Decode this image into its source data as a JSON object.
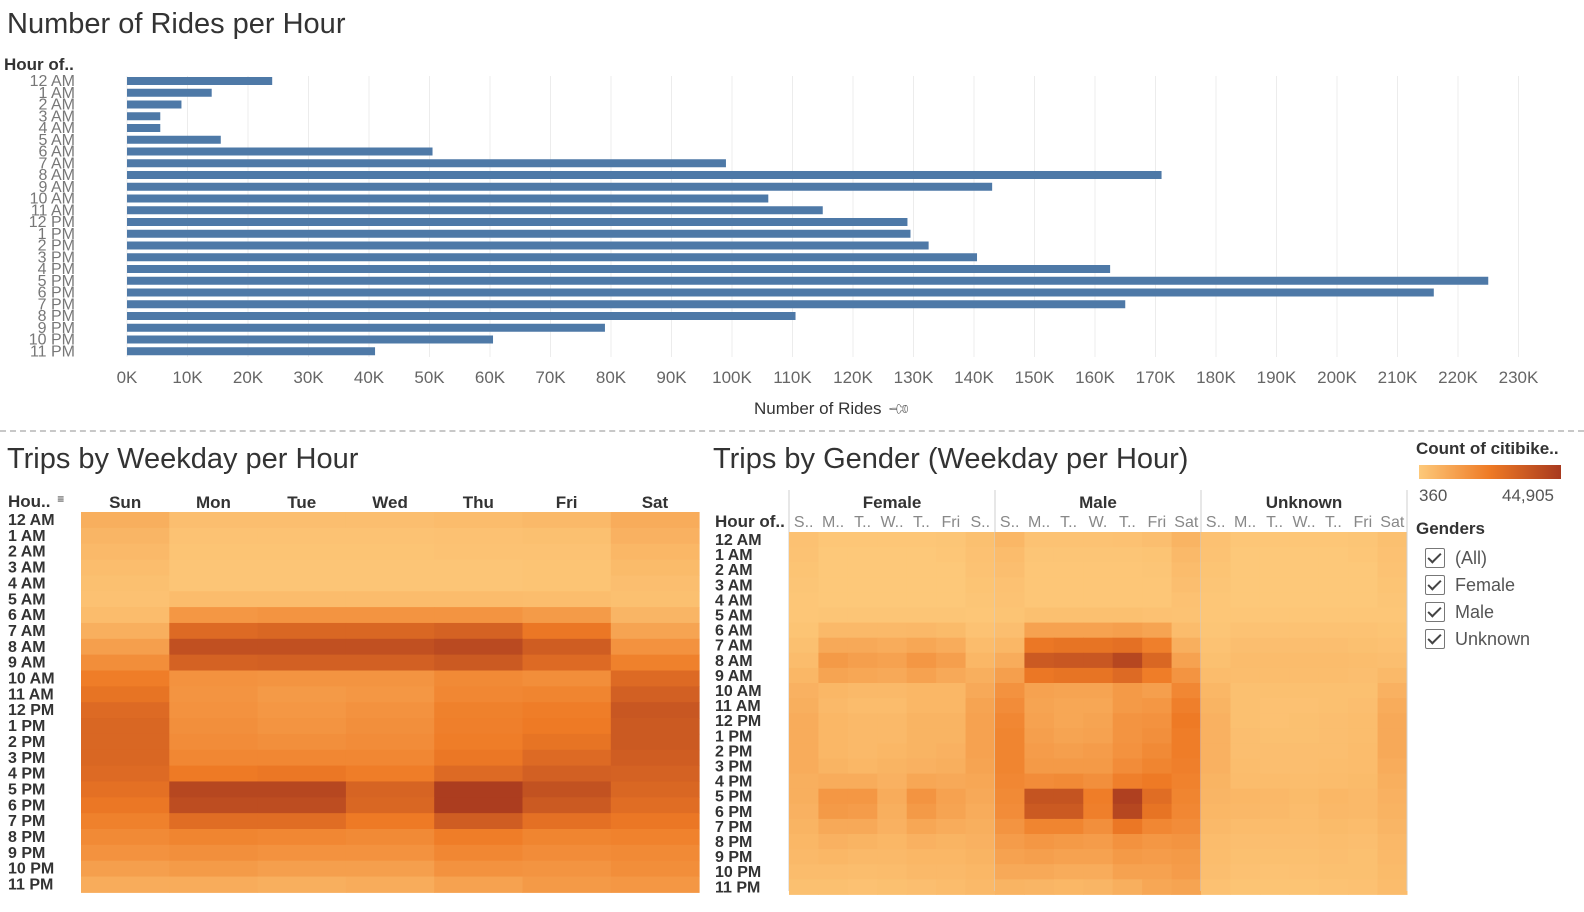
{
  "colors": {
    "bar": "#4e79a7",
    "heat_low": "#fdc97a",
    "heat_mid": "#ee7a25",
    "heat_high": "#a83a1f",
    "gridline": "#ececec"
  },
  "bar_section": {
    "title": "Number of Rides per Hour",
    "row_header": "Hour of..",
    "x_axis_title": "Number of Rides",
    "pin_icon": "pin-icon"
  },
  "weekday_section": {
    "title": "Trips by Weekday per Hour",
    "row_header": "Hou..",
    "sort_icon": "sort-icon"
  },
  "gender_section": {
    "title": "Trips by Gender (Weekday per Hour)",
    "row_header": "Hour of.."
  },
  "legend": {
    "color_title": "Count of citibike..",
    "min_label": "360",
    "max_label": "44,905",
    "filter_title": "Genders",
    "options": [
      "(All)",
      "Female",
      "Male",
      "Unknown"
    ],
    "checked": [
      true,
      true,
      true,
      true
    ]
  },
  "chart_data": [
    {
      "type": "bar",
      "title": "Number of Rides per Hour",
      "ylabel": "Hour of..",
      "xlabel": "Number of Rides",
      "categories": [
        "12 AM",
        "1 AM",
        "2 AM",
        "3 AM",
        "4 AM",
        "5 AM",
        "6 AM",
        "7 AM",
        "8 AM",
        "9 AM",
        "10 AM",
        "11 AM",
        "12 PM",
        "1 PM",
        "2 PM",
        "3 PM",
        "4 PM",
        "5 PM",
        "6 PM",
        "7 PM",
        "8 PM",
        "9 PM",
        "10 PM",
        "11 PM"
      ],
      "values": [
        24000,
        14000,
        9000,
        5500,
        5500,
        15500,
        50500,
        99000,
        171000,
        143000,
        106000,
        115000,
        129000,
        129500,
        132500,
        140500,
        162500,
        225000,
        216000,
        165000,
        110500,
        79000,
        60500,
        41000
      ],
      "x_ticks": [
        "0K",
        "10K",
        "20K",
        "30K",
        "40K",
        "50K",
        "60K",
        "70K",
        "80K",
        "90K",
        "100K",
        "110K",
        "120K",
        "130K",
        "140K",
        "150K",
        "160K",
        "170K",
        "180K",
        "190K",
        "200K",
        "210K",
        "220K",
        "230K"
      ],
      "xlim": [
        0,
        230000
      ],
      "grid": true
    },
    {
      "type": "heatmap",
      "title": "Trips by Weekday per Hour",
      "columns": [
        "Sun",
        "Mon",
        "Tue",
        "Wed",
        "Thu",
        "Fri",
        "Sat"
      ],
      "rows": [
        "12 AM",
        "1 AM",
        "2 AM",
        "3 AM",
        "4 AM",
        "5 AM",
        "6 AM",
        "7 AM",
        "8 AM",
        "9 AM",
        "10 AM",
        "11 AM",
        "12 PM",
        "1 PM",
        "2 PM",
        "3 PM",
        "4 PM",
        "5 PM",
        "6 PM",
        "7 PM",
        "8 PM",
        "9 PM",
        "10 PM",
        "11 PM"
      ],
      "scale": [
        0,
        1
      ],
      "values": [
        [
          0.2,
          0.08,
          0.08,
          0.08,
          0.1,
          0.12,
          0.22
        ],
        [
          0.15,
          0.05,
          0.05,
          0.05,
          0.06,
          0.07,
          0.18
        ],
        [
          0.12,
          0.04,
          0.04,
          0.04,
          0.05,
          0.05,
          0.14
        ],
        [
          0.09,
          0.03,
          0.03,
          0.03,
          0.03,
          0.04,
          0.11
        ],
        [
          0.07,
          0.03,
          0.03,
          0.03,
          0.03,
          0.04,
          0.08
        ],
        [
          0.06,
          0.1,
          0.1,
          0.1,
          0.1,
          0.09,
          0.07
        ],
        [
          0.1,
          0.38,
          0.4,
          0.4,
          0.4,
          0.35,
          0.15
        ],
        [
          0.2,
          0.7,
          0.72,
          0.72,
          0.75,
          0.62,
          0.28
        ],
        [
          0.32,
          0.86,
          0.86,
          0.86,
          0.9,
          0.78,
          0.42
        ],
        [
          0.45,
          0.75,
          0.76,
          0.76,
          0.8,
          0.7,
          0.55
        ],
        [
          0.58,
          0.42,
          0.4,
          0.4,
          0.48,
          0.45,
          0.7
        ],
        [
          0.64,
          0.4,
          0.36,
          0.38,
          0.5,
          0.52,
          0.76
        ],
        [
          0.7,
          0.42,
          0.38,
          0.42,
          0.55,
          0.58,
          0.82
        ],
        [
          0.72,
          0.44,
          0.4,
          0.44,
          0.56,
          0.6,
          0.8
        ],
        [
          0.72,
          0.46,
          0.44,
          0.46,
          0.58,
          0.64,
          0.8
        ],
        [
          0.72,
          0.5,
          0.5,
          0.5,
          0.62,
          0.7,
          0.78
        ],
        [
          0.7,
          0.6,
          0.62,
          0.58,
          0.7,
          0.76,
          0.75
        ],
        [
          0.66,
          0.92,
          0.92,
          0.74,
          0.98,
          0.85,
          0.72
        ],
        [
          0.62,
          0.88,
          0.88,
          0.72,
          0.98,
          0.8,
          0.68
        ],
        [
          0.55,
          0.68,
          0.68,
          0.6,
          0.78,
          0.66,
          0.62
        ],
        [
          0.48,
          0.52,
          0.5,
          0.48,
          0.58,
          0.52,
          0.54
        ],
        [
          0.42,
          0.44,
          0.42,
          0.42,
          0.5,
          0.46,
          0.48
        ],
        [
          0.32,
          0.35,
          0.32,
          0.32,
          0.42,
          0.4,
          0.45
        ],
        [
          0.22,
          0.22,
          0.2,
          0.22,
          0.3,
          0.36,
          0.38
        ]
      ]
    },
    {
      "type": "heatmap",
      "title": "Trips by Gender (Weekday per Hour)",
      "groups": [
        "Female",
        "Male",
        "Unknown"
      ],
      "day_labels": [
        "S..",
        "M..",
        "T..",
        "W..",
        "T..",
        "Fri",
        "S.."
      ],
      "day_labels_male": [
        "S..",
        "M..",
        "T..",
        "W.",
        "T..",
        "Fri",
        "Sat"
      ],
      "day_labels_unknown": [
        "S..",
        "M..",
        "T..",
        "W..",
        "T..",
        "Fri",
        "Sat"
      ],
      "rows": [
        "12 AM",
        "1 AM",
        "2 AM",
        "3 AM",
        "4 AM",
        "5 AM",
        "6 AM",
        "7 AM",
        "8 AM",
        "9 AM",
        "10 AM",
        "11 AM",
        "12 PM",
        "1 PM",
        "2 PM",
        "3 PM",
        "4 PM",
        "5 PM",
        "6 PM",
        "7 PM",
        "8 PM",
        "9 PM",
        "10 PM",
        "11 PM"
      ],
      "scale": [
        0,
        1
      ],
      "values": {
        "Female": [
          [
            0.06,
            0.02,
            0.02,
            0.02,
            0.02,
            0.03,
            0.07
          ],
          [
            0.05,
            0.01,
            0.01,
            0.01,
            0.01,
            0.02,
            0.06
          ],
          [
            0.04,
            0.01,
            0.01,
            0.01,
            0.01,
            0.01,
            0.05
          ],
          [
            0.03,
            0.01,
            0.01,
            0.01,
            0.01,
            0.01,
            0.04
          ],
          [
            0.02,
            0.01,
            0.01,
            0.01,
            0.01,
            0.01,
            0.03
          ],
          [
            0.02,
            0.03,
            0.03,
            0.03,
            0.03,
            0.03,
            0.02
          ],
          [
            0.04,
            0.12,
            0.12,
            0.12,
            0.13,
            0.11,
            0.05
          ],
          [
            0.07,
            0.24,
            0.24,
            0.22,
            0.26,
            0.22,
            0.1
          ],
          [
            0.1,
            0.36,
            0.32,
            0.3,
            0.38,
            0.32,
            0.14
          ],
          [
            0.14,
            0.28,
            0.26,
            0.24,
            0.3,
            0.24,
            0.2
          ],
          [
            0.18,
            0.14,
            0.12,
            0.12,
            0.14,
            0.14,
            0.24
          ],
          [
            0.2,
            0.12,
            0.1,
            0.1,
            0.14,
            0.14,
            0.28
          ],
          [
            0.22,
            0.14,
            0.12,
            0.12,
            0.16,
            0.16,
            0.3
          ],
          [
            0.22,
            0.14,
            0.12,
            0.12,
            0.16,
            0.16,
            0.3
          ],
          [
            0.22,
            0.14,
            0.12,
            0.14,
            0.16,
            0.18,
            0.3
          ],
          [
            0.22,
            0.16,
            0.14,
            0.16,
            0.18,
            0.2,
            0.28
          ],
          [
            0.2,
            0.22,
            0.22,
            0.18,
            0.26,
            0.24,
            0.26
          ],
          [
            0.2,
            0.38,
            0.38,
            0.22,
            0.4,
            0.3,
            0.24
          ],
          [
            0.18,
            0.36,
            0.34,
            0.2,
            0.36,
            0.28,
            0.22
          ],
          [
            0.16,
            0.24,
            0.24,
            0.18,
            0.26,
            0.22,
            0.2
          ],
          [
            0.14,
            0.18,
            0.16,
            0.14,
            0.18,
            0.16,
            0.18
          ],
          [
            0.12,
            0.14,
            0.12,
            0.12,
            0.14,
            0.14,
            0.16
          ],
          [
            0.1,
            0.1,
            0.09,
            0.1,
            0.12,
            0.12,
            0.14
          ],
          [
            0.07,
            0.07,
            0.06,
            0.07,
            0.08,
            0.1,
            0.12
          ]
        ],
        "Male": [
          [
            0.14,
            0.05,
            0.05,
            0.05,
            0.06,
            0.08,
            0.16
          ],
          [
            0.1,
            0.03,
            0.03,
            0.03,
            0.03,
            0.04,
            0.12
          ],
          [
            0.08,
            0.02,
            0.02,
            0.02,
            0.02,
            0.03,
            0.1
          ],
          [
            0.06,
            0.02,
            0.02,
            0.02,
            0.02,
            0.02,
            0.08
          ],
          [
            0.05,
            0.02,
            0.02,
            0.02,
            0.02,
            0.02,
            0.06
          ],
          [
            0.04,
            0.07,
            0.07,
            0.07,
            0.07,
            0.06,
            0.05
          ],
          [
            0.08,
            0.3,
            0.3,
            0.3,
            0.32,
            0.28,
            0.1
          ],
          [
            0.14,
            0.62,
            0.64,
            0.64,
            0.66,
            0.56,
            0.2
          ],
          [
            0.22,
            0.8,
            0.82,
            0.82,
            0.92,
            0.72,
            0.3
          ],
          [
            0.32,
            0.62,
            0.64,
            0.64,
            0.7,
            0.58,
            0.4
          ],
          [
            0.42,
            0.3,
            0.28,
            0.28,
            0.36,
            0.32,
            0.5
          ],
          [
            0.46,
            0.28,
            0.26,
            0.26,
            0.36,
            0.38,
            0.56
          ],
          [
            0.5,
            0.3,
            0.26,
            0.28,
            0.4,
            0.42,
            0.6
          ],
          [
            0.52,
            0.32,
            0.28,
            0.3,
            0.4,
            0.44,
            0.58
          ],
          [
            0.52,
            0.34,
            0.32,
            0.34,
            0.42,
            0.48,
            0.58
          ],
          [
            0.52,
            0.36,
            0.36,
            0.36,
            0.46,
            0.52,
            0.56
          ],
          [
            0.5,
            0.46,
            0.48,
            0.44,
            0.56,
            0.6,
            0.54
          ],
          [
            0.48,
            0.84,
            0.84,
            0.58,
            0.96,
            0.68,
            0.52
          ],
          [
            0.46,
            0.8,
            0.8,
            0.56,
            0.92,
            0.64,
            0.5
          ],
          [
            0.4,
            0.52,
            0.52,
            0.44,
            0.62,
            0.5,
            0.46
          ],
          [
            0.34,
            0.38,
            0.36,
            0.34,
            0.42,
            0.38,
            0.4
          ],
          [
            0.3,
            0.32,
            0.3,
            0.3,
            0.36,
            0.34,
            0.36
          ],
          [
            0.24,
            0.24,
            0.22,
            0.22,
            0.3,
            0.3,
            0.34
          ],
          [
            0.16,
            0.15,
            0.14,
            0.15,
            0.2,
            0.26,
            0.28
          ]
        ],
        "Unknown": [
          [
            0.06,
            0.02,
            0.02,
            0.02,
            0.02,
            0.03,
            0.07
          ],
          [
            0.05,
            0.01,
            0.01,
            0.01,
            0.01,
            0.02,
            0.06
          ],
          [
            0.04,
            0.01,
            0.01,
            0.01,
            0.01,
            0.01,
            0.05
          ],
          [
            0.03,
            0.01,
            0.01,
            0.01,
            0.01,
            0.01,
            0.04
          ],
          [
            0.02,
            0.01,
            0.01,
            0.01,
            0.01,
            0.01,
            0.03
          ],
          [
            0.02,
            0.02,
            0.02,
            0.02,
            0.02,
            0.02,
            0.02
          ],
          [
            0.03,
            0.05,
            0.05,
            0.05,
            0.05,
            0.05,
            0.04
          ],
          [
            0.05,
            0.08,
            0.08,
            0.08,
            0.08,
            0.07,
            0.06
          ],
          [
            0.07,
            0.1,
            0.1,
            0.1,
            0.1,
            0.09,
            0.08
          ],
          [
            0.1,
            0.09,
            0.09,
            0.09,
            0.09,
            0.08,
            0.12
          ],
          [
            0.14,
            0.07,
            0.07,
            0.07,
            0.07,
            0.07,
            0.18
          ],
          [
            0.16,
            0.07,
            0.06,
            0.06,
            0.07,
            0.08,
            0.22
          ],
          [
            0.18,
            0.07,
            0.06,
            0.07,
            0.08,
            0.09,
            0.24
          ],
          [
            0.18,
            0.08,
            0.07,
            0.07,
            0.08,
            0.09,
            0.24
          ],
          [
            0.18,
            0.08,
            0.08,
            0.08,
            0.08,
            0.1,
            0.24
          ],
          [
            0.18,
            0.09,
            0.08,
            0.08,
            0.09,
            0.1,
            0.22
          ],
          [
            0.16,
            0.1,
            0.1,
            0.09,
            0.1,
            0.11,
            0.2
          ],
          [
            0.15,
            0.14,
            0.13,
            0.11,
            0.14,
            0.12,
            0.18
          ],
          [
            0.14,
            0.13,
            0.12,
            0.1,
            0.13,
            0.12,
            0.17
          ],
          [
            0.12,
            0.1,
            0.1,
            0.09,
            0.11,
            0.1,
            0.15
          ],
          [
            0.1,
            0.08,
            0.08,
            0.08,
            0.09,
            0.08,
            0.13
          ],
          [
            0.09,
            0.07,
            0.07,
            0.07,
            0.08,
            0.07,
            0.12
          ],
          [
            0.08,
            0.06,
            0.05,
            0.06,
            0.07,
            0.07,
            0.11
          ],
          [
            0.06,
            0.04,
            0.04,
            0.04,
            0.05,
            0.06,
            0.1
          ]
        ]
      }
    }
  ]
}
